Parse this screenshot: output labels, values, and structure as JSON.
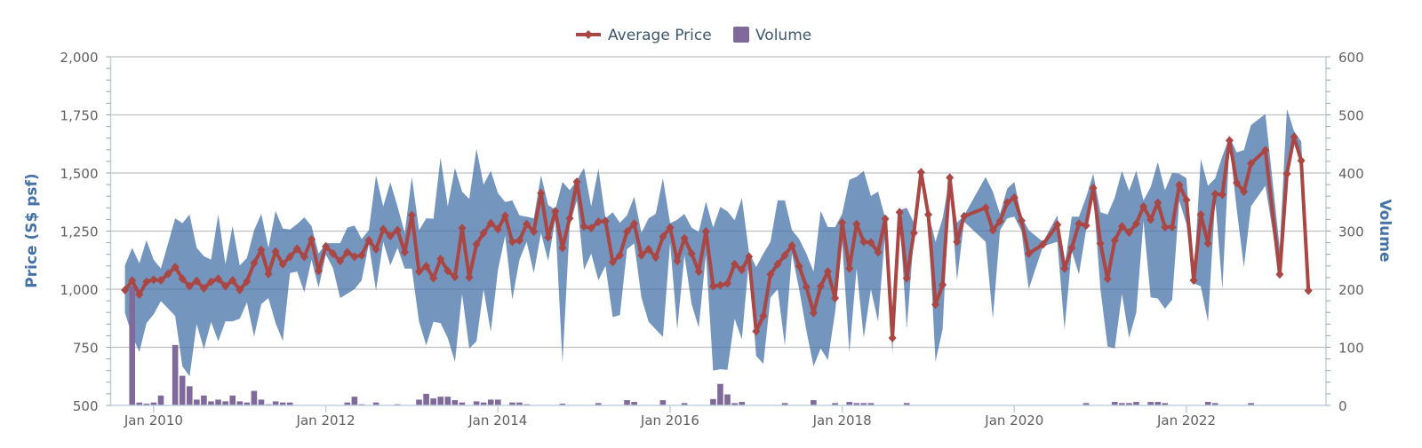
{
  "chart_data": {
    "type": "line+arearange+bar",
    "title": "",
    "legend": {
      "placement": "top-center",
      "items": [
        {
          "name": "Average Price",
          "symbol": "line-diamond",
          "color": "#AA4643"
        },
        {
          "name": "Volume",
          "symbol": "square",
          "color": "#80699B"
        }
      ]
    },
    "colors": {
      "average_price": "#AA4643",
      "range_band": "#4572A7",
      "volume": "#80699B",
      "axis_title": "#4572A7",
      "grid": "#C0C0C0"
    },
    "grid": true,
    "x_axis": {
      "type": "datetime",
      "range": [
        "2009-07",
        "2023-08"
      ],
      "ticks": [
        {
          "date": "2010-01",
          "label": "Jan 2010"
        },
        {
          "date": "2012-01",
          "label": "Jan 2012"
        },
        {
          "date": "2014-01",
          "label": "Jan 2014"
        },
        {
          "date": "2016-01",
          "label": "Jan 2016"
        },
        {
          "date": "2018-01",
          "label": "Jan 2018"
        },
        {
          "date": "2020-01",
          "label": "Jan 2020"
        },
        {
          "date": "2022-01",
          "label": "Jan 2022"
        }
      ]
    },
    "y_axis_left": {
      "title": "Price (S$ psf)",
      "range": [
        500,
        2000
      ],
      "ticks": [
        {
          "value": 500,
          "label": "500"
        },
        {
          "value": 750,
          "label": "750"
        },
        {
          "value": 1000,
          "label": "1,000"
        },
        {
          "value": 1250,
          "label": "1,250"
        },
        {
          "value": 1500,
          "label": "1,500"
        },
        {
          "value": 1750,
          "label": "1,750"
        },
        {
          "value": 2000,
          "label": "2,000"
        }
      ]
    },
    "y_axis_right": {
      "title": "Volume",
      "range": [
        0,
        600
      ],
      "ticks": [
        {
          "value": 0,
          "label": "0"
        },
        {
          "value": 100,
          "label": "100"
        },
        {
          "value": 200,
          "label": "200"
        },
        {
          "value": 300,
          "label": "300"
        },
        {
          "value": 400,
          "label": "400"
        },
        {
          "value": 500,
          "label": "500"
        },
        {
          "value": 600,
          "label": "600"
        }
      ]
    },
    "columns": [
      "month",
      "average_price",
      "range_low",
      "range_high",
      "volume"
    ],
    "rows": [
      [
        "2009-09",
        996,
        898,
        1102,
        null
      ],
      [
        "2009-10",
        1037,
        800,
        1178,
        205
      ],
      [
        "2009-11",
        977,
        730,
        1112,
        5
      ],
      [
        "2009-12",
        1032,
        854,
        1211,
        3
      ],
      [
        "2010-01",
        1041,
        892,
        1127,
        5
      ],
      [
        "2010-02",
        1038,
        949,
        1089,
        17
      ],
      [
        "2010-03",
        1066,
        917,
        1197,
        null
      ],
      [
        "2010-04",
        1095,
        885,
        1305,
        104
      ],
      [
        "2010-05",
        1045,
        669,
        1284,
        51
      ],
      [
        "2010-06",
        1013,
        625,
        1321,
        33
      ],
      [
        "2010-07",
        1036,
        850,
        1178,
        10
      ],
      [
        "2010-08",
        1004,
        742,
        1142,
        17
      ],
      [
        "2010-09",
        1032,
        859,
        1127,
        7
      ],
      [
        "2010-10",
        1045,
        776,
        1321,
        10
      ],
      [
        "2010-11",
        1013,
        862,
        1107,
        7
      ],
      [
        "2010-12",
        1038,
        862,
        1272,
        17
      ],
      [
        "2011-01",
        997,
        873,
        1102,
        7
      ],
      [
        "2011-02",
        1034,
        943,
        1134,
        5
      ],
      [
        "2011-03",
        1112,
        796,
        1254,
        25
      ],
      [
        "2011-04",
        1169,
        936,
        1324,
        10
      ],
      [
        "2011-05",
        1066,
        962,
        1178,
        2
      ],
      [
        "2011-06",
        1162,
        854,
        1337,
        7
      ],
      [
        "2011-07",
        1108,
        777,
        1261,
        5
      ],
      [
        "2011-08",
        1140,
        1070,
        1257,
        5
      ],
      [
        "2011-09",
        1174,
        1076,
        1280,
        null
      ],
      [
        "2011-10",
        1140,
        987,
        1309,
        null
      ],
      [
        "2011-11",
        1214,
        1127,
        1272,
        null
      ],
      [
        "2011-12",
        1079,
        1006,
        1153,
        null
      ],
      [
        "2012-01",
        1184,
        1150,
        1198,
        null
      ],
      [
        "2012-02",
        1153,
        1090,
        1198,
        null
      ],
      [
        "2012-03",
        1121,
        962,
        1198,
        null
      ],
      [
        "2012-04",
        1159,
        981,
        1265,
        5
      ],
      [
        "2012-05",
        1140,
        1000,
        1274,
        15
      ],
      [
        "2012-06",
        1146,
        1038,
        1216,
        2
      ],
      [
        "2012-07",
        1210,
        1195,
        1254,
        null
      ],
      [
        "2012-08",
        1172,
        994,
        1490,
        5
      ],
      [
        "2012-09",
        1258,
        1204,
        1356,
        null
      ],
      [
        "2012-10",
        1229,
        1102,
        1460,
        null
      ],
      [
        "2012-11",
        1254,
        1178,
        1356,
        2
      ],
      [
        "2012-12",
        1159,
        1089,
        1242,
        null
      ],
      [
        "2013-01",
        1318,
        1089,
        1483,
        null
      ],
      [
        "2013-02",
        1076,
        860,
        1254,
        10
      ],
      [
        "2013-03",
        1099,
        758,
        1305,
        20
      ],
      [
        "2013-04",
        1047,
        860,
        1303,
        12
      ],
      [
        "2013-05",
        1130,
        854,
        1566,
        15
      ],
      [
        "2013-06",
        1079,
        790,
        1356,
        15
      ],
      [
        "2013-07",
        1053,
        687,
        1522,
        9
      ],
      [
        "2013-08",
        1263,
        980,
        1420,
        5
      ],
      [
        "2013-09",
        1051,
        745,
        1388,
        null
      ],
      [
        "2013-10",
        1193,
        776,
        1605,
        7
      ],
      [
        "2013-11",
        1242,
        1000,
        1450,
        5
      ],
      [
        "2013-12",
        1284,
        816,
        1509,
        10
      ],
      [
        "2014-01",
        1258,
        1083,
        1413,
        10
      ],
      [
        "2014-02",
        1316,
        1230,
        1375,
        null
      ],
      [
        "2014-03",
        1204,
        955,
        1382,
        5
      ],
      [
        "2014-04",
        1210,
        1127,
        1318,
        5
      ],
      [
        "2014-05",
        1280,
        1204,
        1312,
        2
      ],
      [
        "2014-06",
        1248,
        1070,
        1305,
        null
      ],
      [
        "2014-07",
        1413,
        1242,
        1490,
        null
      ],
      [
        "2014-08",
        1223,
        1121,
        1362,
        null
      ],
      [
        "2014-09",
        1335,
        1299,
        1343,
        null
      ],
      [
        "2014-10",
        1178,
        682,
        1462,
        3
      ],
      [
        "2014-11",
        1305,
        1274,
        1426,
        null
      ],
      [
        "2014-12",
        1462,
        1382,
        1468,
        null
      ],
      [
        "2015-01",
        1270,
        1083,
        1522,
        null
      ],
      [
        "2015-02",
        1263,
        1153,
        1356,
        null
      ],
      [
        "2015-03",
        1290,
        1038,
        1519,
        4
      ],
      [
        "2015-04",
        1293,
        1100,
        1305,
        null
      ],
      [
        "2015-05",
        1117,
        880,
        1331,
        null
      ],
      [
        "2015-06",
        1146,
        889,
        1286,
        null
      ],
      [
        "2015-07",
        1248,
        1172,
        1318,
        9
      ],
      [
        "2015-08",
        1282,
        1197,
        1398,
        6
      ],
      [
        "2015-09",
        1146,
        964,
        1242,
        null
      ],
      [
        "2015-10",
        1172,
        860,
        1305,
        null
      ],
      [
        "2015-11",
        1137,
        827,
        1324,
        null
      ],
      [
        "2015-12",
        1226,
        795,
        1477,
        9
      ],
      [
        "2016-01",
        1265,
        1200,
        1284,
        null
      ],
      [
        "2016-02",
        1121,
        827,
        1299,
        null
      ],
      [
        "2016-03",
        1219,
        1146,
        1324,
        4
      ],
      [
        "2016-04",
        1153,
        936,
        1265,
        null
      ],
      [
        "2016-05",
        1076,
        835,
        1246,
        null
      ],
      [
        "2016-06",
        1248,
        1150,
        1377,
        null
      ],
      [
        "2016-07",
        1013,
        650,
        1265,
        11
      ],
      [
        "2016-08",
        1017,
        656,
        1354,
        37
      ],
      [
        "2016-09",
        1025,
        653,
        1335,
        19
      ],
      [
        "2016-10",
        1108,
        873,
        1297,
        4
      ],
      [
        "2016-11",
        1083,
        784,
        1392,
        6
      ],
      [
        "2016-12",
        1140,
        1127,
        1160,
        null
      ],
      [
        "2017-01",
        819,
        713,
        1095,
        null
      ],
      [
        "2017-02",
        885,
        679,
        1153,
        null
      ],
      [
        "2017-03",
        1064,
        964,
        1204,
        null
      ],
      [
        "2017-04",
        1108,
        1000,
        1382,
        null
      ],
      [
        "2017-05",
        1146,
        758,
        1382,
        4
      ],
      [
        "2017-06",
        1188,
        1153,
        1254,
        null
      ],
      [
        "2017-07",
        1099,
        1000,
        1216,
        null
      ],
      [
        "2017-08",
        1010,
        822,
        1153,
        null
      ],
      [
        "2017-09",
        898,
        668,
        1076,
        9
      ],
      [
        "2017-10",
        1013,
        745,
        1337,
        null
      ],
      [
        "2017-11",
        1076,
        695,
        1267,
        null
      ],
      [
        "2017-12",
        962,
        900,
        1267,
        4
      ],
      [
        "2018-01",
        1286,
        1200,
        1324,
        null
      ],
      [
        "2018-02",
        1089,
        728,
        1471,
        6
      ],
      [
        "2018-03",
        1280,
        1089,
        1484,
        4
      ],
      [
        "2018-04",
        1204,
        790,
        1509,
        4
      ],
      [
        "2018-05",
        1201,
        1000,
        1401,
        4
      ],
      [
        "2018-06",
        1159,
        860,
        1420,
        null
      ],
      [
        "2018-07",
        1303,
        1250,
        1305,
        null
      ],
      [
        "2018-08",
        790,
        725,
        800,
        null
      ],
      [
        "2018-09",
        1331,
        1310,
        1340,
        null
      ],
      [
        "2018-10",
        1047,
        830,
        1350,
        4
      ],
      [
        "2018-11",
        1242,
        1230,
        1286,
        null
      ],
      [
        "2018-12",
        1503,
        1480,
        1522,
        null
      ],
      [
        "2019-01",
        1321,
        1300,
        1330,
        null
      ],
      [
        "2019-02",
        934,
        688,
        1204,
        null
      ],
      [
        "2019-03",
        1019,
        827,
        1305,
        null
      ],
      [
        "2019-04",
        1480,
        1460,
        1484,
        null
      ],
      [
        "2019-05",
        1204,
        1038,
        1286,
        null
      ],
      [
        "2019-06",
        1314,
        1290,
        1318,
        null
      ],
      [
        "2019-09",
        1350,
        1204,
        1483,
        null
      ],
      [
        "2019-10",
        1254,
        873,
        1420,
        null
      ],
      [
        "2019-11",
        1293,
        1254,
        1324,
        null
      ],
      [
        "2019-12",
        1373,
        1305,
        1433,
        null
      ],
      [
        "2020-01",
        1394,
        1312,
        1462,
        null
      ],
      [
        "2020-02",
        1295,
        1250,
        1312,
        null
      ],
      [
        "2020-03",
        1153,
        1000,
        1254,
        null
      ],
      [
        "2020-05",
        1193,
        1185,
        1204,
        null
      ],
      [
        "2020-07",
        1277,
        1204,
        1318,
        null
      ],
      [
        "2020-08",
        1089,
        827,
        1095,
        null
      ],
      [
        "2020-09",
        1178,
        1165,
        1312,
        null
      ],
      [
        "2020-10",
        1282,
        1064,
        1312,
        null
      ],
      [
        "2020-11",
        1274,
        1254,
        1395,
        4
      ],
      [
        "2020-12",
        1435,
        1410,
        1497,
        null
      ],
      [
        "2021-01",
        1197,
        1000,
        1331,
        null
      ],
      [
        "2021-02",
        1045,
        754,
        1321,
        null
      ],
      [
        "2021-03",
        1210,
        745,
        1394,
        6
      ],
      [
        "2021-04",
        1270,
        980,
        1509,
        4
      ],
      [
        "2021-05",
        1244,
        790,
        1423,
        4
      ],
      [
        "2021-06",
        1282,
        900,
        1509,
        6
      ],
      [
        "2021-07",
        1356,
        1293,
        1382,
        null
      ],
      [
        "2021-08",
        1299,
        965,
        1439,
        6
      ],
      [
        "2021-09",
        1372,
        960,
        1547,
        6
      ],
      [
        "2021-10",
        1267,
        916,
        1426,
        4
      ],
      [
        "2021-11",
        1267,
        955,
        1500,
        null
      ],
      [
        "2021-12",
        1448,
        1380,
        1497,
        null
      ],
      [
        "2022-01",
        1384,
        1280,
        1477,
        null
      ],
      [
        "2022-02",
        1038,
        1025,
        1045,
        null
      ],
      [
        "2022-03",
        1321,
        1013,
        1560,
        null
      ],
      [
        "2022-04",
        1197,
        860,
        1445,
        6
      ],
      [
        "2022-05",
        1410,
        1388,
        1477,
        4
      ],
      [
        "2022-06",
        1407,
        1000,
        1573,
        null
      ],
      [
        "2022-07",
        1640,
        1625,
        1655,
        null
      ],
      [
        "2022-08",
        1458,
        1345,
        1589,
        null
      ],
      [
        "2022-09",
        1420,
        1095,
        1598,
        null
      ],
      [
        "2022-10",
        1541,
        1357,
        1706,
        4
      ],
      [
        "2022-12",
        1598,
        1445,
        1754,
        null
      ],
      [
        "2023-02",
        1064,
        1060,
        1178,
        null
      ],
      [
        "2023-03",
        1496,
        1486,
        1776,
        null
      ],
      [
        "2023-04",
        1655,
        1650,
        1680,
        null
      ],
      [
        "2023-05",
        1553,
        1540,
        1636,
        null
      ],
      [
        "2023-06",
        994,
        990,
        998,
        null
      ]
    ]
  }
}
